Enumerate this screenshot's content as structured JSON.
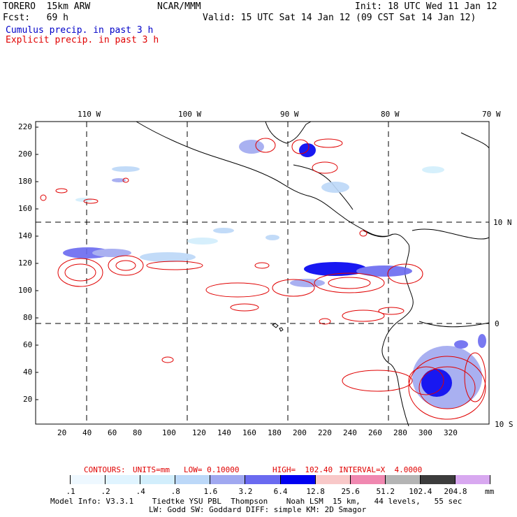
{
  "header": {
    "model": "TORERO  15km ARW",
    "center": "NCAR/MMM",
    "init": "Init: 18 UTC Wed 11 Jan 12",
    "fcst": "Fcst:   69 h",
    "valid": "Valid: 15 UTC Sat 14 Jan 12 (09 CST Sat 14 Jan 12)",
    "legend_cumulus": "Cumulus precip. in past 3 h",
    "legend_explicit": "Explicit precip. in past 3 h"
  },
  "colors": {
    "cumulus": "#0000c8",
    "explicit": "#e00000"
  },
  "map": {
    "lon_labels": [
      "110 W",
      "100 W",
      "90 W",
      "80 W",
      "70 W"
    ],
    "lat_labels": [
      "10 N",
      "0",
      "10 S"
    ],
    "y_ticks": [
      "220",
      "200",
      "180",
      "160",
      "140",
      "120",
      "100",
      "80",
      "60",
      "40",
      "20"
    ],
    "x_ticks": [
      "20",
      "40",
      "60",
      "80",
      "100",
      "120",
      "140",
      "160",
      "180",
      "200",
      "220",
      "240",
      "260",
      "280",
      "300",
      "320"
    ],
    "grid": "dashed lat/lon lines"
  },
  "contour_info": {
    "contours": "CONTOURS:",
    "units": "UNITS=mm",
    "low": "LOW= 0.10000",
    "high": "HIGH=  102.40",
    "interval": "INTERVAL=X  4.0000"
  },
  "colorbar": {
    "unit": "mm",
    "labels": [
      ".1",
      ".2",
      ".4",
      ".8",
      "1.6",
      "3.2",
      "6.4",
      "12.8",
      "25.6",
      "51.2",
      "102.4",
      "204.8"
    ],
    "colors": [
      "#ffffff",
      "#eef8ff",
      "#e0f4ff",
      "#d2eefc",
      "#bcd8f8",
      "#a0a8f0",
      "#6a6af0",
      "#0000f0",
      "#f8c8c8",
      "#f088b0",
      "#b4b4b4",
      "#3c3c3c",
      "#d8a8f0"
    ]
  },
  "footer": {
    "line1": "Model Info: V3.3.1    Tiedtke YSU PBL  Thompson    Noah LSM  15 km,   44 levels,   55 sec",
    "line2": "LW: Godd SW: Goddard DIFF: simple KM: 2D Smagor"
  }
}
